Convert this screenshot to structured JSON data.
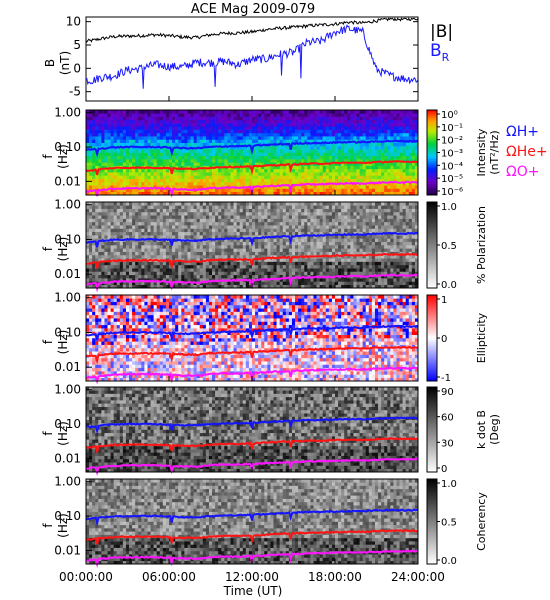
{
  "chart_data": {
    "title": "ACE Mag 2009-079",
    "xlabel": "Time (UT)",
    "x_tick_labels": [
      "00:00:00",
      "06:00:00",
      "12:00:00",
      "18:00:00",
      "24:00:00"
    ],
    "xlim_hours": [
      0,
      24
    ],
    "colors": {
      "B": "#000000",
      "BR": "#1a1aff",
      "H": "#1414ff",
      "He": "#ff1414",
      "O": "#ff14ff"
    },
    "panels": [
      {
        "id": "b-field",
        "type": "line",
        "ylabel": [
          "B",
          "(nT)"
        ],
        "ylim": [
          -7,
          11
        ],
        "y_ticks": [
          -5,
          0,
          5,
          10
        ],
        "legend": [
          "|B|",
          "B_R"
        ],
        "series": [
          {
            "name": "|B|",
            "x": [
              0,
              0.5,
              1,
              2,
              3,
              4,
              5,
              6,
              7,
              8,
              9,
              10,
              11,
              12,
              13,
              14,
              15,
              16,
              17,
              18,
              19,
              20,
              21,
              22,
              23,
              24
            ],
            "y": [
              5.8,
              6.0,
              6.3,
              6.8,
              6.9,
              7.0,
              7.2,
              7.0,
              6.7,
              6.6,
              7.2,
              7.5,
              7.6,
              7.8,
              8.3,
              8.6,
              8.8,
              9.1,
              9.3,
              9.5,
              9.9,
              9.7,
              10.2,
              10.6,
              10.5,
              10.7
            ]
          },
          {
            "name": "B_R",
            "x": [
              0,
              0.5,
              1,
              2,
              3,
              4,
              5,
              6,
              7,
              8,
              9,
              10,
              11,
              12,
              13,
              14,
              15,
              16,
              17,
              18,
              19,
              20,
              21,
              22,
              23,
              24
            ],
            "y": [
              -2.5,
              -2.6,
              -2.0,
              -1.6,
              -0.4,
              0.0,
              0.8,
              0.4,
              0.3,
              1.3,
              1.2,
              1.5,
              0.8,
              1.9,
              2.0,
              3.0,
              3.4,
              5.5,
              5.8,
              7.8,
              8.5,
              7.8,
              -0.3,
              -1.6,
              -2.2,
              -2.4
            ]
          }
        ]
      },
      {
        "id": "intensity",
        "type": "heatmap",
        "ylabel": [
          "f",
          "(Hz)"
        ],
        "y_scale": "log",
        "ylim": [
          0.004,
          1.2
        ],
        "y_tick_labels": [
          "1.00",
          "0.10",
          "0.01"
        ],
        "colorbar_title": [
          "Intensity",
          "(nT²/Hz)"
        ],
        "colorbar_ticks": [
          "10⁰",
          "10⁻¹",
          "10⁻²",
          "10⁻³",
          "10⁻⁴",
          "10⁻⁵",
          "10⁻⁶"
        ],
        "colorbar_range_log10": [
          -6.5,
          0.5
        ],
        "line_labels": [
          "ΩH+",
          "ΩHe+",
          "ΩO+"
        ]
      },
      {
        "id": "polarization",
        "type": "heatmap",
        "ylabel": [
          "f",
          "(Hz)"
        ],
        "y_scale": "log",
        "ylim": [
          0.004,
          1.2
        ],
        "y_tick_labels": [
          "1.00",
          "0.10",
          "0.01"
        ],
        "colorbar_title": [
          "% Polarization"
        ],
        "colorbar_ticks": [
          "1.0",
          "0.5",
          "0.0"
        ],
        "colorbar_range": [
          0,
          1
        ]
      },
      {
        "id": "ellipticity",
        "type": "heatmap",
        "ylabel": [
          "f",
          "(Hz)"
        ],
        "y_scale": "log",
        "ylim": [
          0.004,
          1.2
        ],
        "y_tick_labels": [
          "1.00",
          "0.10",
          "0.01"
        ],
        "colorbar_title": [
          "Ellipticity"
        ],
        "colorbar_ticks": [
          "1",
          "0",
          "-1"
        ],
        "colorbar_range": [
          -1,
          1
        ]
      },
      {
        "id": "kdotb",
        "type": "heatmap",
        "ylabel": [
          "f",
          "(Hz)"
        ],
        "y_scale": "log",
        "ylim": [
          0.004,
          1.2
        ],
        "y_tick_labels": [
          "1.00",
          "0.10",
          "0.01"
        ],
        "colorbar_title": [
          "k dot B",
          "(Deg)"
        ],
        "colorbar_ticks": [
          "90",
          "60",
          "30",
          "0"
        ],
        "colorbar_range": [
          0,
          90
        ]
      },
      {
        "id": "coherency",
        "type": "heatmap",
        "ylabel": [
          "f",
          "(Hz)"
        ],
        "y_scale": "log",
        "ylim": [
          0.004,
          1.2
        ],
        "y_tick_labels": [
          "1.00",
          "0.10",
          "0.01"
        ],
        "colorbar_title": [
          "Coherency"
        ],
        "colorbar_ticks": [
          "1.0",
          "0.5",
          "0.0"
        ],
        "colorbar_range": [
          0,
          1
        ]
      }
    ],
    "gyrofrequency_lines": {
      "x": [
        0,
        0.5,
        1,
        2,
        3,
        4,
        5,
        6,
        7,
        8,
        9,
        10,
        11,
        12,
        13,
        14,
        15,
        16,
        17,
        18,
        19,
        20,
        21,
        22,
        23,
        24
      ],
      "H_plus": [
        0.082,
        0.085,
        0.09,
        0.098,
        0.1,
        0.1,
        0.1,
        0.097,
        0.093,
        0.092,
        0.1,
        0.105,
        0.106,
        0.108,
        0.115,
        0.12,
        0.125,
        0.13,
        0.132,
        0.135,
        0.14,
        0.138,
        0.145,
        0.15,
        0.148,
        0.15
      ],
      "He_plus": [
        0.0205,
        0.021,
        0.0225,
        0.0245,
        0.025,
        0.025,
        0.025,
        0.0243,
        0.0233,
        0.023,
        0.025,
        0.0263,
        0.0265,
        0.027,
        0.0288,
        0.03,
        0.0313,
        0.0325,
        0.033,
        0.0338,
        0.035,
        0.0345,
        0.0363,
        0.0375,
        0.037,
        0.0375
      ],
      "O_plus": [
        0.0051,
        0.0053,
        0.0056,
        0.0061,
        0.0062,
        0.0063,
        0.0063,
        0.0061,
        0.0058,
        0.0057,
        0.0063,
        0.0066,
        0.0066,
        0.0068,
        0.0072,
        0.0075,
        0.0078,
        0.0081,
        0.0083,
        0.0084,
        0.0088,
        0.0086,
        0.0091,
        0.0094,
        0.0093,
        0.0094
      ]
    }
  }
}
